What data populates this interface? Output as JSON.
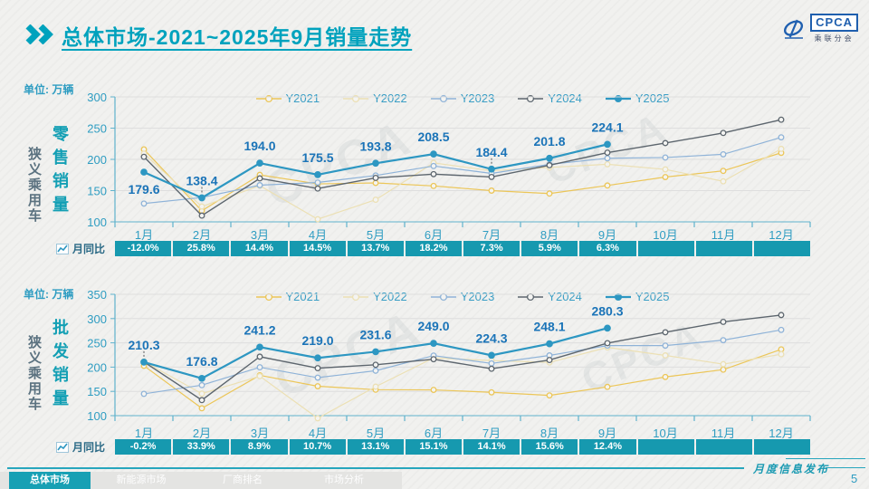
{
  "header": {
    "title": "总体市场-2021~2025年9月销量走势",
    "logo": {
      "brand": "CPCA",
      "sub": "乘联分会"
    }
  },
  "colors": {
    "accent": "#00a2bd",
    "axis": "#5fb2cc",
    "tick_label": "#2f9dc2",
    "data_label": "#1b74b8",
    "yoy_bg": "#1699af",
    "series": {
      "Y2021": "#ecc658",
      "Y2022": "#ece0b4",
      "Y2023": "#8fb3d8",
      "Y2024": "#5d666e",
      "Y2025": "#2d97c2"
    }
  },
  "charts": [
    {
      "unit_label": "单位: 万辆",
      "category_label": "狭义乘用车",
      "measure_label": "零售销量",
      "yoy_label": "月同比"
    },
    {
      "unit_label": "单位: 万辆",
      "category_label": "狭义乘用车",
      "measure_label": "批发销量",
      "yoy_label": "月同比"
    }
  ],
  "chart_data": [
    {
      "type": "line",
      "title": "狭义乘用车零售销量",
      "unit": "万辆",
      "ylim": [
        100,
        300
      ],
      "ytick_step": 50,
      "grid": true,
      "legend_position": "top-center",
      "categories": [
        "1月",
        "2月",
        "3月",
        "4月",
        "5月",
        "6月",
        "7月",
        "8月",
        "9月",
        "10月",
        "11月",
        "12月"
      ],
      "series": [
        {
          "name": "Y2021",
          "values": [
            216.0,
            117.7,
            175.2,
            160.8,
            162.3,
            157.5,
            150.0,
            145.3,
            158.2,
            171.7,
            181.6,
            210.5
          ]
        },
        {
          "name": "Y2022",
          "values": [
            209.2,
            124.6,
            157.9,
            104.2,
            135.4,
            194.4,
            181.8,
            187.1,
            192.2,
            184.0,
            164.9,
            216.9
          ]
        },
        {
          "name": "Y2023",
          "values": [
            129.3,
            139.0,
            158.7,
            163.0,
            174.2,
            189.4,
            177.5,
            192.0,
            201.8,
            203.0,
            208.1,
            235.3
          ]
        },
        {
          "name": "Y2024",
          "values": [
            204.1,
            110.0,
            169.6,
            153.3,
            170.4,
            176.4,
            171.9,
            190.6,
            210.8,
            226.1,
            242.3,
            263.5
          ]
        },
        {
          "name": "Y2025",
          "values": [
            179.6,
            138.4,
            194.0,
            175.5,
            193.8,
            208.5,
            184.4,
            201.8,
            224.1
          ]
        }
      ],
      "data_labels_series": "Y2025",
      "data_labels": [
        "179.6",
        "138.4",
        "194.0",
        "175.5",
        "193.8",
        "208.5",
        "184.4",
        "201.8",
        "224.1"
      ],
      "yoy": {
        "label": "月同比",
        "values": [
          "-12.0%",
          "25.8%",
          "14.4%",
          "14.5%",
          "13.7%",
          "18.2%",
          "7.3%",
          "5.9%",
          "6.3%",
          "",
          "",
          ""
        ]
      }
    },
    {
      "type": "line",
      "title": "狭义乘用车批发销量",
      "unit": "万辆",
      "ylim": [
        100,
        350
      ],
      "ytick_step": 50,
      "grid": true,
      "legend_position": "top-center",
      "categories": [
        "1月",
        "2月",
        "3月",
        "4月",
        "5月",
        "6月",
        "7月",
        "8月",
        "9月",
        "10月",
        "11月",
        "12月"
      ],
      "series": [
        {
          "name": "Y2021",
          "values": [
            202.7,
            115.2,
            183.1,
            160.6,
            153.5,
            153.1,
            148.0,
            141.7,
            159.3,
            179.7,
            194.8,
            236.6
          ]
        },
        {
          "name": "Y2022",
          "values": [
            211.5,
            145.3,
            181.4,
            94.6,
            159.7,
            218.9,
            213.6,
            209.7,
            240.6,
            224.1,
            206.1,
            226.5
          ]
        },
        {
          "name": "Y2023",
          "values": [
            144.9,
            162.8,
            199.7,
            178.3,
            192.6,
            223.7,
            207.6,
            224.1,
            244.4,
            244.3,
            255.5,
            276.7
          ]
        },
        {
          "name": "Y2024",
          "values": [
            210.7,
            132.0,
            221.5,
            197.8,
            204.8,
            216.3,
            196.6,
            214.6,
            249.4,
            271.8,
            293.2,
            307.3
          ]
        },
        {
          "name": "Y2025",
          "values": [
            210.3,
            176.8,
            241.2,
            219.0,
            231.6,
            249.0,
            224.3,
            248.1,
            280.3
          ]
        }
      ],
      "data_labels_series": "Y2025",
      "data_labels": [
        "210.3",
        "176.8",
        "241.2",
        "219.0",
        "231.6",
        "249.0",
        "224.3",
        "248.1",
        "280.3"
      ],
      "yoy": {
        "label": "月同比",
        "values": [
          "-0.2%",
          "33.9%",
          "8.9%",
          "10.7%",
          "13.1%",
          "15.1%",
          "14.1%",
          "15.6%",
          "12.4%",
          "",
          "",
          ""
        ]
      }
    }
  ],
  "footer": {
    "publication": "月度信息发布",
    "page_number": "5",
    "tabs": [
      {
        "label": "总体市场",
        "active": true
      },
      {
        "label": "新能源市场",
        "active": false
      },
      {
        "label": "厂商排名",
        "active": false
      },
      {
        "label": "市场分析",
        "active": false
      }
    ]
  },
  "watermark": "CPCA"
}
